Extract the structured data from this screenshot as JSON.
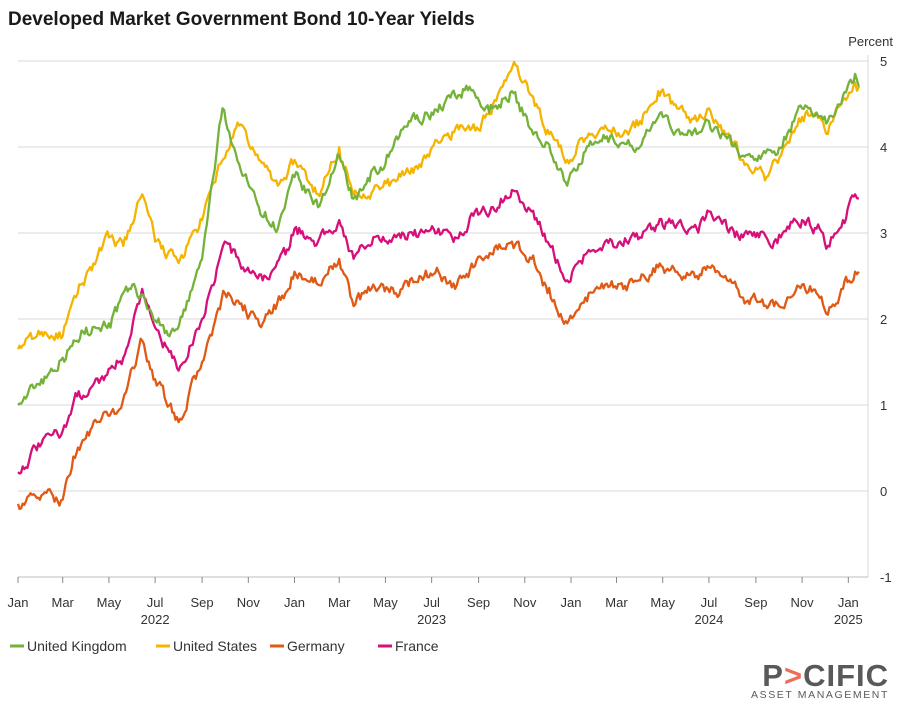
{
  "chart_data": {
    "type": "line",
    "title": "Developed Market Government Bond 10-Year Yields",
    "y_unit": "Percent",
    "ylim": [
      -1,
      5
    ],
    "y_ticks": [
      "5",
      "4",
      "3",
      "2",
      "1",
      "0",
      "-1"
    ],
    "x_month_labels": [
      "Jan",
      "Mar",
      "May",
      "Jul",
      "Sep",
      "Nov",
      "Jan",
      "Mar",
      "May",
      "Jul",
      "Sep",
      "Nov",
      "Jan",
      "Mar",
      "May",
      "Jul",
      "Sep",
      "Nov",
      "Jan"
    ],
    "x_year_labels": [
      "2022",
      "2023",
      "2024",
      "2025"
    ],
    "x_range": [
      "2022-01",
      "2025-01"
    ],
    "grid": "horizontal",
    "legend_position": "bottom-left",
    "series": [
      {
        "name": "United Kingdom",
        "color": "#74b23a",
        "points": [
          [
            "2022-01-01",
            1.0
          ],
          [
            "2022-02-01",
            1.3
          ],
          [
            "2022-03-01",
            1.55
          ],
          [
            "2022-04-01",
            1.9
          ],
          [
            "2022-05-01",
            1.95
          ],
          [
            "2022-06-01",
            2.4
          ],
          [
            "2022-06-25",
            2.1
          ],
          [
            "2022-07-20",
            1.8
          ],
          [
            "2022-08-10",
            2.1
          ],
          [
            "2022-09-01",
            2.7
          ],
          [
            "2022-09-28",
            4.45
          ],
          [
            "2022-10-20",
            3.8
          ],
          [
            "2022-11-15",
            3.3
          ],
          [
            "2022-12-10",
            3.05
          ],
          [
            "2023-01-01",
            3.65
          ],
          [
            "2023-02-01",
            3.3
          ],
          [
            "2023-03-01",
            3.9
          ],
          [
            "2023-03-20",
            3.4
          ],
          [
            "2023-04-10",
            3.6
          ],
          [
            "2023-05-01",
            3.8
          ],
          [
            "2023-06-01",
            4.3
          ],
          [
            "2023-07-01",
            4.4
          ],
          [
            "2023-08-01",
            4.6
          ],
          [
            "2023-08-20",
            4.7
          ],
          [
            "2023-09-15",
            4.4
          ],
          [
            "2023-10-15",
            4.65
          ],
          [
            "2023-11-10",
            4.2
          ],
          [
            "2023-12-01",
            4.05
          ],
          [
            "2023-12-27",
            3.55
          ],
          [
            "2024-01-20",
            3.95
          ],
          [
            "2024-02-15",
            4.1
          ],
          [
            "2024-03-10",
            4.05
          ],
          [
            "2024-04-01",
            4.0
          ],
          [
            "2024-04-25",
            4.35
          ],
          [
            "2024-05-20",
            4.2
          ],
          [
            "2024-06-15",
            4.15
          ],
          [
            "2024-07-01",
            4.3
          ],
          [
            "2024-07-25",
            4.1
          ],
          [
            "2024-08-15",
            3.9
          ],
          [
            "2024-09-05",
            3.9
          ],
          [
            "2024-09-25",
            3.95
          ],
          [
            "2024-10-15",
            4.2
          ],
          [
            "2024-11-01",
            4.45
          ],
          [
            "2024-11-20",
            4.4
          ],
          [
            "2024-12-05",
            4.3
          ],
          [
            "2024-12-25",
            4.6
          ],
          [
            "2025-01-10",
            4.85
          ],
          [
            "2025-01-15",
            4.7
          ]
        ]
      },
      {
        "name": "United States",
        "color": "#f5b400",
        "points": [
          [
            "2022-01-01",
            1.65
          ],
          [
            "2022-02-01",
            1.85
          ],
          [
            "2022-03-01",
            1.8
          ],
          [
            "2022-03-25",
            2.4
          ],
          [
            "2022-05-01",
            2.95
          ],
          [
            "2022-05-20",
            2.85
          ],
          [
            "2022-06-14",
            3.45
          ],
          [
            "2022-07-01",
            2.9
          ],
          [
            "2022-08-01",
            2.65
          ],
          [
            "2022-09-01",
            3.15
          ],
          [
            "2022-09-25",
            3.8
          ],
          [
            "2022-10-20",
            4.25
          ],
          [
            "2022-11-15",
            3.85
          ],
          [
            "2022-12-10",
            3.55
          ],
          [
            "2023-01-01",
            3.85
          ],
          [
            "2023-02-01",
            3.45
          ],
          [
            "2023-03-01",
            4.0
          ],
          [
            "2023-03-20",
            3.45
          ],
          [
            "2023-04-15",
            3.5
          ],
          [
            "2023-05-15",
            3.6
          ],
          [
            "2023-06-15",
            3.8
          ],
          [
            "2023-07-10",
            4.05
          ],
          [
            "2023-08-10",
            4.25
          ],
          [
            "2023-09-01",
            4.2
          ],
          [
            "2023-09-20",
            4.5
          ],
          [
            "2023-10-20",
            4.95
          ],
          [
            "2023-11-10",
            4.6
          ],
          [
            "2023-12-01",
            4.2
          ],
          [
            "2023-12-27",
            3.85
          ],
          [
            "2024-01-20",
            4.1
          ],
          [
            "2024-02-15",
            4.25
          ],
          [
            "2024-03-10",
            4.15
          ],
          [
            "2024-04-01",
            4.3
          ],
          [
            "2024-04-25",
            4.65
          ],
          [
            "2024-05-20",
            4.45
          ],
          [
            "2024-06-15",
            4.3
          ],
          [
            "2024-07-01",
            4.45
          ],
          [
            "2024-07-25",
            4.15
          ],
          [
            "2024-08-15",
            3.85
          ],
          [
            "2024-09-05",
            3.75
          ],
          [
            "2024-09-15",
            3.65
          ],
          [
            "2024-10-15",
            4.05
          ],
          [
            "2024-11-01",
            4.35
          ],
          [
            "2024-11-20",
            4.4
          ],
          [
            "2024-12-05",
            4.15
          ],
          [
            "2024-12-25",
            4.55
          ],
          [
            "2025-01-10",
            4.75
          ],
          [
            "2025-01-15",
            4.7
          ]
        ]
      },
      {
        "name": "Germany",
        "color": "#e05a16",
        "points": [
          [
            "2022-01-01",
            -0.15
          ],
          [
            "2022-02-01",
            -0.05
          ],
          [
            "2022-03-01",
            -0.1
          ],
          [
            "2022-03-15",
            0.4
          ],
          [
            "2022-04-15",
            0.8
          ],
          [
            "2022-05-15",
            0.95
          ],
          [
            "2022-06-14",
            1.75
          ],
          [
            "2022-07-01",
            1.3
          ],
          [
            "2022-08-01",
            0.8
          ],
          [
            "2022-09-01",
            1.5
          ],
          [
            "2022-10-01",
            2.3
          ],
          [
            "2022-10-25",
            2.1
          ],
          [
            "2022-11-20",
            1.95
          ],
          [
            "2022-12-20",
            2.3
          ],
          [
            "2023-01-01",
            2.55
          ],
          [
            "2023-02-01",
            2.4
          ],
          [
            "2023-03-01",
            2.7
          ],
          [
            "2023-03-20",
            2.15
          ],
          [
            "2023-04-15",
            2.4
          ],
          [
            "2023-05-15",
            2.3
          ],
          [
            "2023-06-15",
            2.5
          ],
          [
            "2023-07-10",
            2.55
          ],
          [
            "2023-08-01",
            2.35
          ],
          [
            "2023-08-25",
            2.6
          ],
          [
            "2023-09-20",
            2.75
          ],
          [
            "2023-10-15",
            2.9
          ],
          [
            "2023-11-10",
            2.7
          ],
          [
            "2023-12-01",
            2.3
          ],
          [
            "2023-12-27",
            1.95
          ],
          [
            "2024-01-20",
            2.25
          ],
          [
            "2024-02-15",
            2.4
          ],
          [
            "2024-03-10",
            2.35
          ],
          [
            "2024-04-01",
            2.45
          ],
          [
            "2024-04-25",
            2.6
          ],
          [
            "2024-05-20",
            2.55
          ],
          [
            "2024-06-15",
            2.5
          ],
          [
            "2024-07-01",
            2.6
          ],
          [
            "2024-07-25",
            2.45
          ],
          [
            "2024-08-15",
            2.25
          ],
          [
            "2024-09-05",
            2.2
          ],
          [
            "2024-09-25",
            2.15
          ],
          [
            "2024-10-15",
            2.25
          ],
          [
            "2024-11-01",
            2.4
          ],
          [
            "2024-11-20",
            2.3
          ],
          [
            "2024-12-05",
            2.05
          ],
          [
            "2024-12-25",
            2.35
          ],
          [
            "2025-01-10",
            2.55
          ],
          [
            "2025-01-15",
            2.55
          ]
        ]
      },
      {
        "name": "France",
        "color": "#d6107a",
        "points": [
          [
            "2022-01-01",
            0.22
          ],
          [
            "2022-02-01",
            0.55
          ],
          [
            "2022-03-01",
            0.7
          ],
          [
            "2022-03-20",
            1.1
          ],
          [
            "2022-04-20",
            1.3
          ],
          [
            "2022-05-20",
            1.55
          ],
          [
            "2022-06-14",
            2.35
          ],
          [
            "2022-07-01",
            1.9
          ],
          [
            "2022-08-01",
            1.4
          ],
          [
            "2022-09-01",
            2.0
          ],
          [
            "2022-10-01",
            2.9
          ],
          [
            "2022-10-25",
            2.6
          ],
          [
            "2022-11-20",
            2.45
          ],
          [
            "2022-12-20",
            2.75
          ],
          [
            "2023-01-01",
            3.05
          ],
          [
            "2023-02-01",
            2.9
          ],
          [
            "2023-03-01",
            3.15
          ],
          [
            "2023-03-20",
            2.7
          ],
          [
            "2023-04-15",
            2.95
          ],
          [
            "2023-05-15",
            2.95
          ],
          [
            "2023-06-15",
            3.0
          ],
          [
            "2023-07-10",
            3.05
          ],
          [
            "2023-08-01",
            2.95
          ],
          [
            "2023-08-25",
            3.2
          ],
          [
            "2023-09-20",
            3.3
          ],
          [
            "2023-10-15",
            3.5
          ],
          [
            "2023-11-10",
            3.25
          ],
          [
            "2023-12-01",
            2.9
          ],
          [
            "2023-12-27",
            2.45
          ],
          [
            "2024-01-20",
            2.75
          ],
          [
            "2024-02-15",
            2.9
          ],
          [
            "2024-03-10",
            2.85
          ],
          [
            "2024-04-01",
            2.95
          ],
          [
            "2024-04-25",
            3.1
          ],
          [
            "2024-05-20",
            3.1
          ],
          [
            "2024-06-15",
            3.05
          ],
          [
            "2024-07-01",
            3.25
          ],
          [
            "2024-07-25",
            3.05
          ],
          [
            "2024-08-15",
            2.95
          ],
          [
            "2024-09-05",
            2.95
          ],
          [
            "2024-09-25",
            2.9
          ],
          [
            "2024-10-15",
            3.05
          ],
          [
            "2024-11-01",
            3.15
          ],
          [
            "2024-11-20",
            3.05
          ],
          [
            "2024-12-05",
            2.85
          ],
          [
            "2024-12-25",
            3.15
          ],
          [
            "2025-01-10",
            3.45
          ],
          [
            "2025-01-15",
            3.4
          ]
        ]
      }
    ]
  },
  "logo": {
    "main": "PACIFIC",
    "sub": "ASSET MANAGEMENT",
    "accent_color": "#ef6c5a"
  }
}
